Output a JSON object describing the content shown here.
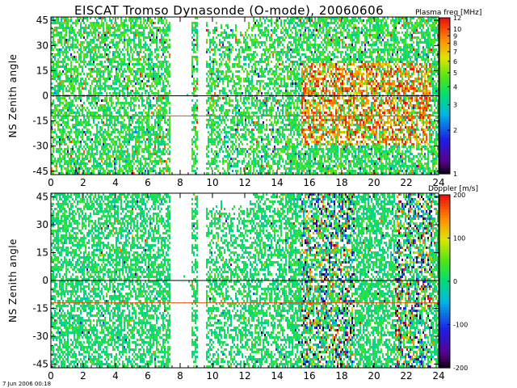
{
  "title": "EISCAT Tromso Dynasonde (O-mode),  20060606",
  "timestamp": "7 Jun 2006 00:18",
  "colors": {
    "axis": "#000000",
    "ref_line_zero": "#000000",
    "ref_line_offset": "#e05010",
    "background": "#ffffff"
  },
  "chart_data": [
    {
      "type": "heatmap",
      "panel": "top",
      "quantity": "Plasma frequency",
      "xlabel": "",
      "ylabel": "NS Zenith angle",
      "xlim": [
        0,
        24
      ],
      "ylim": [
        -47,
        47
      ],
      "x_ticks": [
        "0",
        "2",
        "4",
        "6",
        "8",
        "10",
        "12",
        "14",
        "16",
        "18",
        "20",
        "22",
        "24"
      ],
      "y_ticks": [
        "-45",
        "-30",
        "-15",
        "0",
        "15",
        "30",
        "45"
      ],
      "y_tick_values": [
        -45,
        -30,
        -15,
        0,
        15,
        30,
        45
      ],
      "reference_lines": [
        0,
        -12
      ],
      "colorbar": {
        "label": "Plasma freq [MHz]",
        "scale": "log",
        "min": 1,
        "max": 12,
        "ticks": [
          "12",
          "10",
          "9",
          "8",
          "7",
          "6",
          "5",
          "4",
          "3",
          "2",
          "1"
        ],
        "tick_values": [
          12,
          10,
          9,
          8,
          7,
          6,
          5,
          4,
          3,
          2,
          1
        ]
      },
      "data_gaps_hours": [
        [
          7.4,
          8.7
        ],
        [
          9.1,
          9.6
        ]
      ],
      "description_values": {
        "typical_range_MHz": [
          3,
          5
        ],
        "enhanced_window_hours": [
          15.5,
          23.5
        ],
        "enhanced_range_MHz": [
          6,
          12
        ]
      }
    },
    {
      "type": "heatmap",
      "panel": "bottom",
      "quantity": "Doppler velocity",
      "xlabel": "",
      "ylabel": "NS Zenith angle",
      "xlim": [
        0,
        24
      ],
      "ylim": [
        -47,
        47
      ],
      "x_ticks": [
        "0",
        "2",
        "4",
        "6",
        "8",
        "10",
        "12",
        "14",
        "16",
        "18",
        "20",
        "22",
        "24"
      ],
      "y_ticks": [
        "-45",
        "-30",
        "-15",
        "0",
        "15",
        "30",
        "45"
      ],
      "y_tick_values": [
        -45,
        -30,
        -15,
        0,
        15,
        30,
        45
      ],
      "reference_lines": [
        0,
        -12
      ],
      "colorbar": {
        "label": "Doppler [m/s]",
        "scale": "linear",
        "min": -200,
        "max": 200,
        "ticks": [
          "200",
          "100",
          "0",
          "-100",
          "-200"
        ],
        "tick_values": [
          200,
          100,
          0,
          -100,
          -200
        ]
      },
      "data_gaps_hours": [
        [
          7.4,
          8.7
        ],
        [
          9.1,
          9.6
        ]
      ],
      "description_values": {
        "typical_range_ms": [
          -20,
          40
        ],
        "high_variance_windows_hours": [
          [
            15.5,
            18.8
          ],
          [
            21.3,
            23.6
          ]
        ]
      }
    }
  ]
}
